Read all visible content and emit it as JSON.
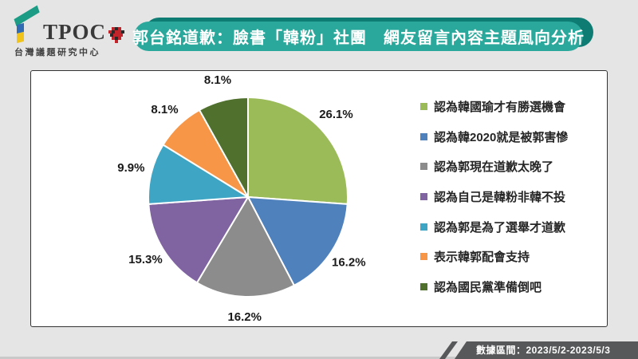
{
  "logo": {
    "brand": "TPOC",
    "subtitle": "台灣議題研究中心",
    "colors": {
      "green": "#1C9C84",
      "blue": "#2F6CB3",
      "yellow": "#F0C41B",
      "red": "#C2242B",
      "dark": "#2a2a2a"
    }
  },
  "header": {
    "title": "郭台銘道歉：臉書「韓粉」社團　網友留言內容主題風向分析",
    "banner_color": "#2AA89B",
    "banner_shadow_color": "#0F7C73",
    "text_color": "#ffffff"
  },
  "footer": {
    "data_range_label": "數據區間：2023/5/2-2023/5/3",
    "banner_color": "#57585A"
  },
  "chart_data": {
    "type": "pie",
    "title": "郭台銘道歉：臉書「韓粉」社團 網友留言內容主題風向分析",
    "unit": "%",
    "start_angle_deg": 0,
    "direction": "clockwise",
    "legend_position": "right",
    "slices": [
      {
        "label": "認為韓國瑜才有勝選機會",
        "value": 26.1,
        "display": "26.1%",
        "color": "#9BBB59"
      },
      {
        "label": "認為韓2020就是被郭害慘",
        "value": 16.2,
        "display": "16.2%",
        "color": "#4F81BD"
      },
      {
        "label": "認為郭現在道歉太晚了",
        "value": 16.2,
        "display": "16.2%",
        "color": "#8C8C8C"
      },
      {
        "label": "認為自己是韓粉非韓不投",
        "value": 15.3,
        "display": "15.3%",
        "color": "#8064A2"
      },
      {
        "label": "認為郭是為了選舉才道歉",
        "value": 9.9,
        "display": "9.9%",
        "color": "#3EA5C4"
      },
      {
        "label": "表示韓郭配會支持",
        "value": 8.1,
        "display": "8.1%",
        "color": "#F79646"
      },
      {
        "label": "認為國民黨準備倒吧",
        "value": 8.1,
        "display": "8.1%",
        "color": "#50702E"
      }
    ]
  }
}
